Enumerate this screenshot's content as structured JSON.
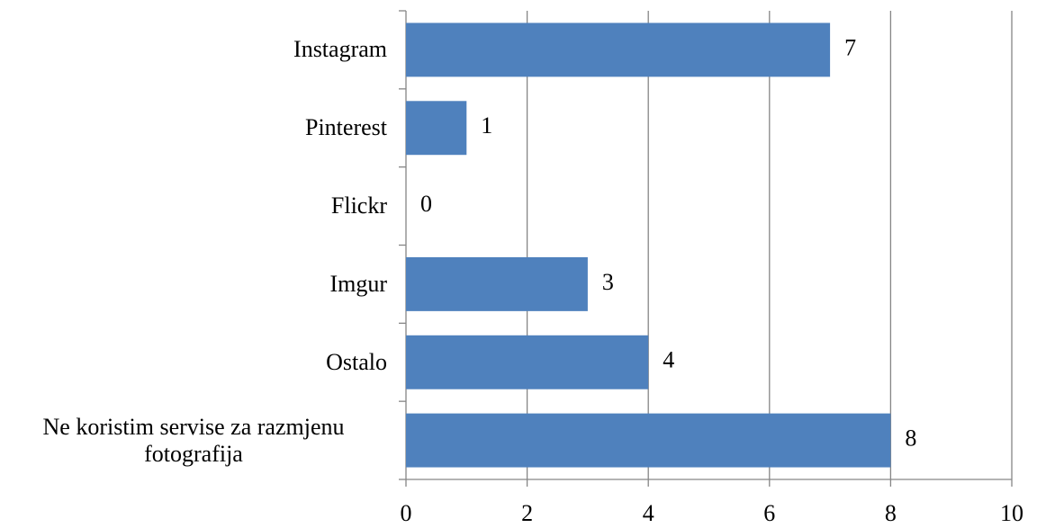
{
  "chart_data": {
    "type": "bar",
    "orientation": "horizontal",
    "categories": [
      "Instagram",
      "Pinterest",
      "Flickr",
      "Imgur",
      "Ostalo",
      "Ne koristim servise za razmjenu fotografija"
    ],
    "values": [
      7,
      1,
      0,
      3,
      4,
      8
    ],
    "color": "#4f81bd",
    "xlim": [
      0,
      10
    ],
    "xticks": [
      0,
      2,
      4,
      6,
      8,
      10
    ],
    "grid": true
  }
}
